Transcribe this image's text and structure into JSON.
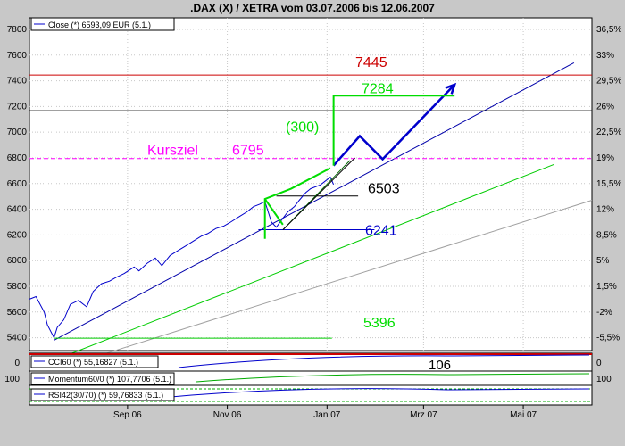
{
  "chart_data": {
    "type": "line",
    "title": ".DAX (X) / XETRA vom 03.07.2006 bis 12.06.2007",
    "legend": {
      "label": "Close (*) 6593,09 EUR (5.1.)",
      "position": "top-left"
    },
    "y_left": {
      "ticks": [
        5400,
        5600,
        5800,
        6000,
        6200,
        6400,
        6600,
        6800,
        7000,
        7200,
        7400,
        7600,
        7800
      ],
      "range": [
        5300,
        7890
      ]
    },
    "y_right": {
      "ticks": [
        "36,5%",
        "33%",
        "29,5%",
        "26%",
        "22,5%",
        "19%",
        "15,5%",
        "12%",
        "8,5%",
        "5%",
        "1,5%",
        "-2%",
        "-5,5%"
      ]
    },
    "x_ticks": [
      {
        "label": "Sep 06",
        "date": "2006-09-01"
      },
      {
        "label": "Nov 06",
        "date": "2006-11-01"
      },
      {
        "label": "Jan 07",
        "date": "2007-01-01"
      },
      {
        "label": "Mrz 07",
        "date": "2007-03-01"
      },
      {
        "label": "Mai 07",
        "date": "2007-05-01"
      }
    ],
    "x_range": [
      "2006-07-03",
      "2007-06-12"
    ],
    "grid": true,
    "close_series": {
      "name": "Close",
      "points": [
        [
          "2006-07-03",
          5700
        ],
        [
          "2006-07-07",
          5720
        ],
        [
          "2006-07-12",
          5600
        ],
        [
          "2006-07-14",
          5500
        ],
        [
          "2006-07-18",
          5400
        ],
        [
          "2006-07-20",
          5480
        ],
        [
          "2006-07-24",
          5540
        ],
        [
          "2006-07-28",
          5660
        ],
        [
          "2006-08-02",
          5690
        ],
        [
          "2006-08-07",
          5640
        ],
        [
          "2006-08-11",
          5760
        ],
        [
          "2006-08-16",
          5820
        ],
        [
          "2006-08-21",
          5840
        ],
        [
          "2006-08-25",
          5870
        ],
        [
          "2006-08-30",
          5900
        ],
        [
          "2006-09-05",
          5950
        ],
        [
          "2006-09-08",
          5920
        ],
        [
          "2006-09-13",
          5980
        ],
        [
          "2006-09-18",
          6020
        ],
        [
          "2006-09-22",
          5960
        ],
        [
          "2006-09-27",
          6040
        ],
        [
          "2006-10-02",
          6080
        ],
        [
          "2006-10-06",
          6110
        ],
        [
          "2006-10-11",
          6150
        ],
        [
          "2006-10-16",
          6190
        ],
        [
          "2006-10-20",
          6210
        ],
        [
          "2006-10-25",
          6250
        ],
        [
          "2006-10-30",
          6270
        ],
        [
          "2006-11-03",
          6300
        ],
        [
          "2006-11-08",
          6340
        ],
        [
          "2006-11-13",
          6380
        ],
        [
          "2006-11-17",
          6420
        ],
        [
          "2006-11-21",
          6440
        ],
        [
          "2006-11-24",
          6460
        ],
        [
          "2006-11-28",
          6300
        ],
        [
          "2006-12-01",
          6260
        ],
        [
          "2006-12-05",
          6330
        ],
        [
          "2006-12-08",
          6380
        ],
        [
          "2006-12-12",
          6420
        ],
        [
          "2006-12-15",
          6470
        ],
        [
          "2006-12-19",
          6530
        ],
        [
          "2006-12-22",
          6560
        ],
        [
          "2006-12-28",
          6590
        ],
        [
          "2007-01-03",
          6650
        ],
        [
          "2007-01-05",
          6593
        ]
      ]
    },
    "horizontal_lines": [
      {
        "label": "7445",
        "value": 7445,
        "color": "#cc0000"
      },
      {
        "label": "",
        "value": 7167,
        "color": "#000000"
      },
      {
        "label": "6795",
        "value": 6795,
        "color": "#ff00ff"
      },
      {
        "label": "6503",
        "value": 6503,
        "color": "#000000"
      },
      {
        "label": "6241",
        "value": 6241,
        "color": "#0000cc"
      },
      {
        "label": "5396",
        "value": 5396,
        "color": "#00cc00"
      }
    ],
    "annotations": {
      "kursziel": "Kursziel",
      "target_7284": "7284",
      "gap_300": "(300)"
    },
    "trendlines": [
      {
        "from": [
          "2006-07-18",
          5380
        ],
        "to": [
          "2007-06-01",
          7540
        ],
        "color": "#0000aa"
      },
      {
        "from": [
          "2006-07-03",
          5150
        ],
        "to": [
          "2007-05-20",
          6750
        ],
        "color": "#00cc00"
      },
      {
        "from": [
          "2006-07-03",
          5090
        ],
        "to": [
          "2007-06-12",
          6470
        ],
        "color": "#a0a0a0"
      }
    ],
    "projection": {
      "points": [
        [
          "2007-01-05",
          6740
        ],
        [
          "2007-01-21",
          6970
        ],
        [
          "2007-02-04",
          6790
        ],
        [
          "2007-03-20",
          7370
        ]
      ],
      "color": "#0000cc"
    }
  },
  "indicators": [
    {
      "label": "CCI60 (*) 55,16827 (5.1.)",
      "value_text": "106",
      "ref_line": "0"
    },
    {
      "label": "Momentum60/0 (*) 107,7706 (5.1.)",
      "value_text": "",
      "ref_line": "100"
    },
    {
      "label": "RSI42(30/70) (*) 59,76833 (5.1.)",
      "value_text": "",
      "ref_line": ""
    }
  ],
  "colors": {
    "panel_bg": "#ffffff",
    "frame_bg": "#c8c8c8",
    "close_line": "#0000cc",
    "green": "#00dd00",
    "magenta": "#ff00ff",
    "red": "#cc0000"
  }
}
